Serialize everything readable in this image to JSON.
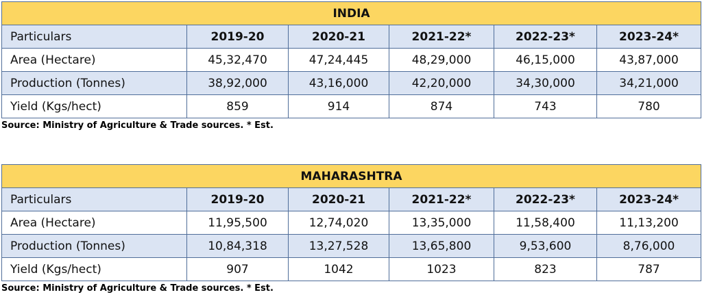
{
  "tables": [
    {
      "title": "INDIA",
      "header": [
        "Particulars",
        "2019-20",
        "2020-21",
        "2021-22*",
        "2022-23*",
        "2023-24*"
      ],
      "rows": [
        [
          "Area (Hectare)",
          "45,32,470",
          "47,24,445",
          "48,29,000",
          "46,15,000",
          "43,87,000"
        ],
        [
          "Production (Tonnes)",
          "38,92,000",
          "43,16,000",
          "42,20,000",
          "34,30,000",
          "34,21,000"
        ],
        [
          "Yield (Kgs/hect)",
          "859",
          "914",
          "874",
          "743",
          "780"
        ]
      ],
      "source": "Source: Ministry of Agriculture & Trade sources. * Est."
    },
    {
      "title": "MAHARASHTRA",
      "header": [
        "Particulars",
        "2019-20",
        "2020-21",
        "2021-22*",
        "2022-23*",
        "2023-24*"
      ],
      "rows": [
        [
          "Area (Hectare)",
          "11,95,500",
          "12,74,020",
          "13,35,000",
          "11,58,400",
          "11,13,200"
        ],
        [
          "Production (Tonnes)",
          "10,84,318",
          "13,27,528",
          "13,65,800",
          "9,53,600",
          "8,76,000"
        ],
        [
          "Yield (Kgs/hect)",
          "907",
          "1042",
          "1023",
          "823",
          "787"
        ]
      ],
      "source": "Source: Ministry of Agriculture & Trade sources. * Est."
    }
  ]
}
